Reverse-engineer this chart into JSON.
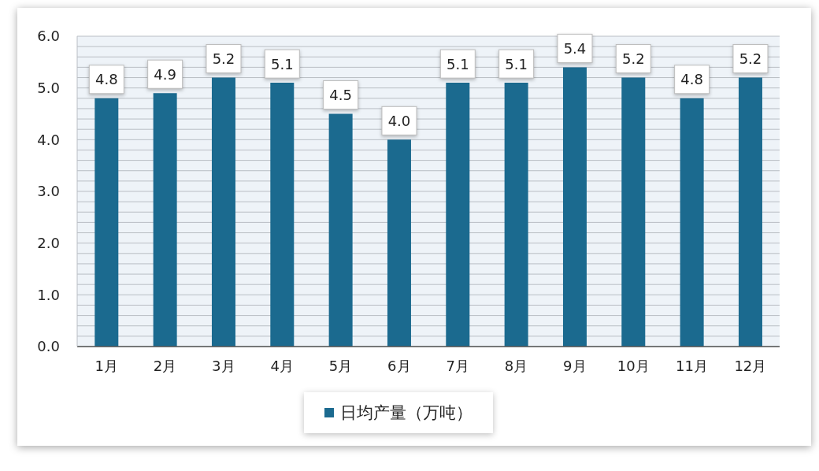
{
  "chart_data": {
    "type": "bar",
    "categories": [
      "1月",
      "2月",
      "3月",
      "4月",
      "5月",
      "6月",
      "7月",
      "8月",
      "9月",
      "10月",
      "11月",
      "12月"
    ],
    "series": [
      {
        "name": "日均产量（万吨）",
        "color": "#1b6a8f",
        "values": [
          4.8,
          4.9,
          5.2,
          5.1,
          4.5,
          4.0,
          5.1,
          5.1,
          5.4,
          5.2,
          4.8,
          5.2
        ],
        "value_labels": [
          "4.8",
          "4.9",
          "5.2",
          "5.1",
          "4.5",
          "4.0",
          "5.1",
          "5.1",
          "5.4",
          "5.2",
          "4.8",
          "5.2"
        ]
      }
    ],
    "ylim": [
      0,
      6
    ],
    "yticks": [
      {
        "value": 0,
        "label": "0.0"
      },
      {
        "value": 0.2,
        "label": null
      },
      {
        "value": 0.4,
        "label": null
      },
      {
        "value": 0.6,
        "label": null
      },
      {
        "value": 0.8,
        "label": null
      },
      {
        "value": 1,
        "label": "1.0"
      },
      {
        "value": 1.2,
        "label": null
      },
      {
        "value": 1.4,
        "label": null
      },
      {
        "value": 1.6,
        "label": null
      },
      {
        "value": 1.8,
        "label": null
      },
      {
        "value": 2,
        "label": "2.0"
      },
      {
        "value": 2.2,
        "label": null
      },
      {
        "value": 2.4,
        "label": null
      },
      {
        "value": 2.6,
        "label": null
      },
      {
        "value": 2.8,
        "label": null
      },
      {
        "value": 3,
        "label": "3.0"
      },
      {
        "value": 3.2,
        "label": null
      },
      {
        "value": 3.4,
        "label": null
      },
      {
        "value": 3.6,
        "label": null
      },
      {
        "value": 3.8,
        "label": null
      },
      {
        "value": 4,
        "label": "4.0"
      },
      {
        "value": 4.2,
        "label": null
      },
      {
        "value": 4.4,
        "label": null
      },
      {
        "value": 4.6,
        "label": null
      },
      {
        "value": 4.8,
        "label": null
      },
      {
        "value": 5,
        "label": "5.0"
      },
      {
        "value": 5.2,
        "label": null
      },
      {
        "value": 5.4,
        "label": null
      },
      {
        "value": 5.6,
        "label": null
      },
      {
        "value": 5.8,
        "label": null
      },
      {
        "value": 6,
        "label": "6.0"
      }
    ],
    "grid": "y",
    "legend": "bottom"
  }
}
